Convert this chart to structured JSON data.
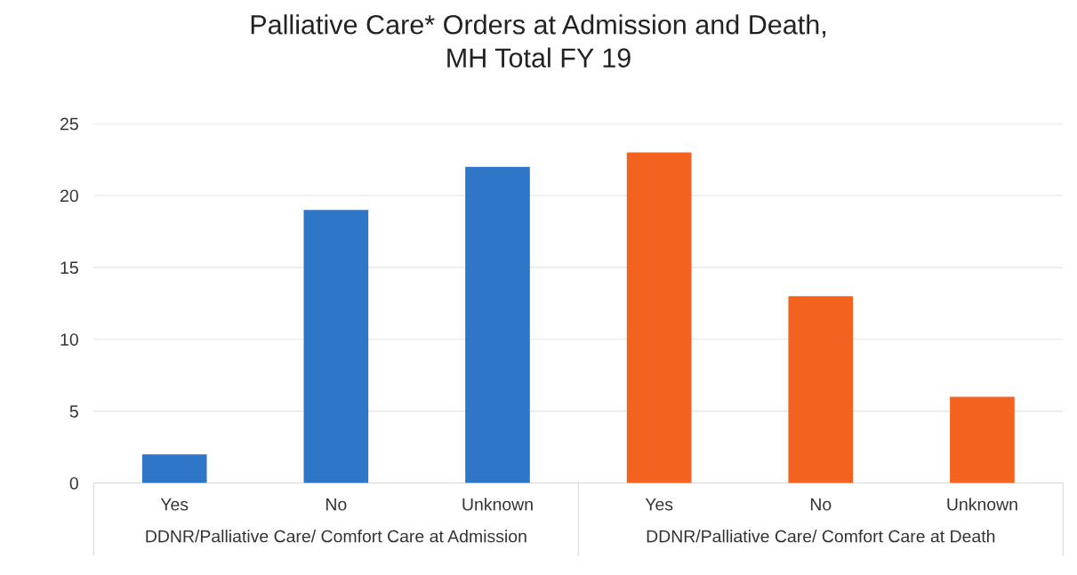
{
  "chart_data": {
    "type": "bar",
    "title": "Palliative Care* Orders at Admission and Death,\nMH Total FY 19",
    "categories": [
      "Yes",
      "No",
      "Unknown",
      "Yes",
      "No",
      "Unknown"
    ],
    "values": [
      2,
      19,
      22,
      23,
      13,
      6
    ],
    "colors": [
      "#2f75c8",
      "#2f75c8",
      "#2f75c8",
      "#f4621f",
      "#f4621f",
      "#f4621f"
    ],
    "ylim": [
      0,
      25
    ],
    "yticks": [
      0,
      5,
      10,
      15,
      20,
      25
    ],
    "grid": "y",
    "annotations": [
      "DDNR/Palliative Care/ Comfort Care at Admission",
      "DDNR/Palliative Care/ Comfort Care at Death"
    ]
  }
}
